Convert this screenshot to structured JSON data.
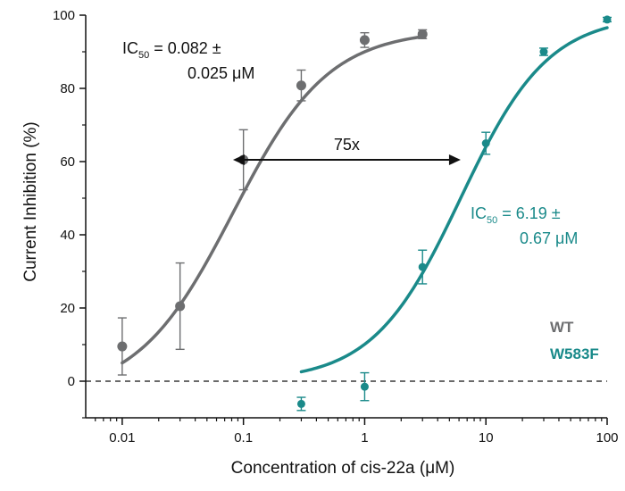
{
  "chart_data": {
    "type": "scatter",
    "title": "",
    "xlabel": "Concentration of cis-22a (μM)",
    "ylabel": "Current Inhibition (%)",
    "xscale": "log",
    "xlim": [
      0.005,
      100
    ],
    "ylim": [
      -10,
      100
    ],
    "x_ticks": [
      0.01,
      0.1,
      1,
      10,
      100
    ],
    "x_tick_labels": [
      "0.01",
      "0.1",
      "1",
      "10",
      "100"
    ],
    "y_ticks": [
      0,
      20,
      40,
      60,
      80,
      100
    ],
    "y_tick_labels": [
      "0",
      "20",
      "40",
      "60",
      "80",
      "100"
    ],
    "reference_line": {
      "y": 0,
      "style": "dashed"
    },
    "legend": {
      "placement": "right",
      "entries": [
        "WT",
        "W583F"
      ]
    },
    "series": [
      {
        "name": "WT",
        "color": "#6d6e70",
        "x": [
          0.01,
          0.03,
          0.1,
          0.3,
          1,
          3
        ],
        "y": [
          9.5,
          20.5,
          60.5,
          80.8,
          93.2,
          94.8
        ],
        "err": [
          7.8,
          11.8,
          8.2,
          4.2,
          2.0,
          1.2
        ],
        "fit": {
          "ic50": 0.082,
          "bottom": -4,
          "top": 96,
          "hill": 1.1,
          "x_range": [
            0.01,
            3
          ]
        }
      },
      {
        "name": "W583F",
        "color": "#1a8a8a",
        "x": [
          0.3,
          1,
          3,
          10,
          30,
          100
        ],
        "y": [
          -6.2,
          -1.5,
          31.2,
          65.0,
          90.0,
          98.8
        ],
        "err": [
          1.8,
          3.8,
          4.6,
          3.0,
          1.0,
          0.6
        ],
        "fit": {
          "ic50": 6.19,
          "bottom": 0,
          "top": 100,
          "hill": 1.2,
          "x_range": [
            0.3,
            100
          ]
        }
      }
    ],
    "annotations": {
      "wt_ic50": {
        "prefix": "IC",
        "sub": "50",
        "line1_rest": " = 0.082 ±",
        "line2": "0.025 μM"
      },
      "w583f_ic50": {
        "prefix": "IC",
        "sub": "50",
        "line1_rest": " = 6.19 ±",
        "line2": "0.67 μM"
      },
      "fold_change": {
        "label": "75x",
        "x_from": 0.082,
        "x_to": 6.19,
        "y": 50
      }
    }
  }
}
